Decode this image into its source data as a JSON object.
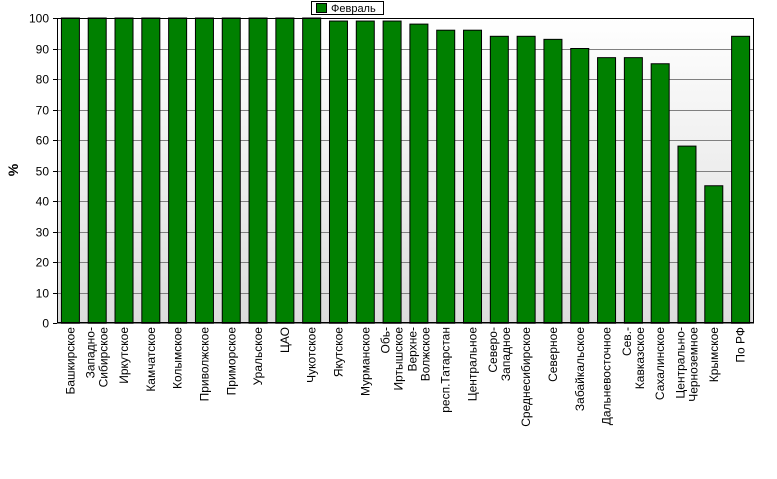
{
  "chart_data": {
    "type": "bar",
    "ylabel": "%",
    "ylim": [
      0,
      100
    ],
    "yticks": [
      0,
      10,
      20,
      30,
      40,
      50,
      60,
      70,
      80,
      90,
      100
    ],
    "grid": true,
    "legend_position": "top-center",
    "categories": [
      "Башкирское",
      "Западно-Сибирское",
      "Иркутское",
      "Камчатское",
      "Колымское",
      "Приволжское",
      "Приморское",
      "Уральское",
      "ЦАО",
      "Чукотское",
      "Якутское",
      "Мурманское",
      "Обь-Иртышское",
      "Верхне-Волжское",
      "респ.Татарстан",
      "Центральное",
      "Северо-Западное",
      "Среднесибирское",
      "Северное",
      "Забайкальское",
      "Дальневосточное",
      "Сев.-Кавказское",
      "Сахалинское",
      "Центрально-Черноземное",
      "Крымское",
      "По РФ"
    ],
    "category_lines": [
      [
        "Башкирское"
      ],
      [
        "Западно-",
        "Сибирское"
      ],
      [
        "Иркутское"
      ],
      [
        "Камчатское"
      ],
      [
        "Колымское"
      ],
      [
        "Приволжское"
      ],
      [
        "Приморское"
      ],
      [
        "Уральское"
      ],
      [
        "ЦАО"
      ],
      [
        "Чукотское"
      ],
      [
        "Якутское"
      ],
      [
        "Мурманское"
      ],
      [
        "Обь-",
        "Иртышское"
      ],
      [
        "Верхне-",
        "Волжское"
      ],
      [
        "респ.Татарстан"
      ],
      [
        "Центральное"
      ],
      [
        "Северо-",
        "Западное"
      ],
      [
        "Среднесибирское"
      ],
      [
        "Северное"
      ],
      [
        "Забайкальское"
      ],
      [
        "Дальневосточное"
      ],
      [
        "Сев.-",
        "Кавказское"
      ],
      [
        "Сахалинское"
      ],
      [
        "Центрально-",
        "Черноземное"
      ],
      [
        "Крымское"
      ],
      [
        "По РФ"
      ]
    ],
    "series": [
      {
        "name": "Февраль",
        "color": "#008000",
        "values": [
          100,
          100,
          100,
          100,
          100,
          100,
          100,
          100,
          100,
          100,
          99,
          99,
          99,
          98,
          96,
          96,
          94,
          94,
          93,
          90,
          87,
          87,
          85,
          58,
          45,
          94
        ]
      }
    ],
    "colors": {
      "plot_bg_top": "#ffffff",
      "plot_bg_bottom": "#dcdcdc",
      "grid": "#808080",
      "bar_edge": "#000000"
    }
  }
}
